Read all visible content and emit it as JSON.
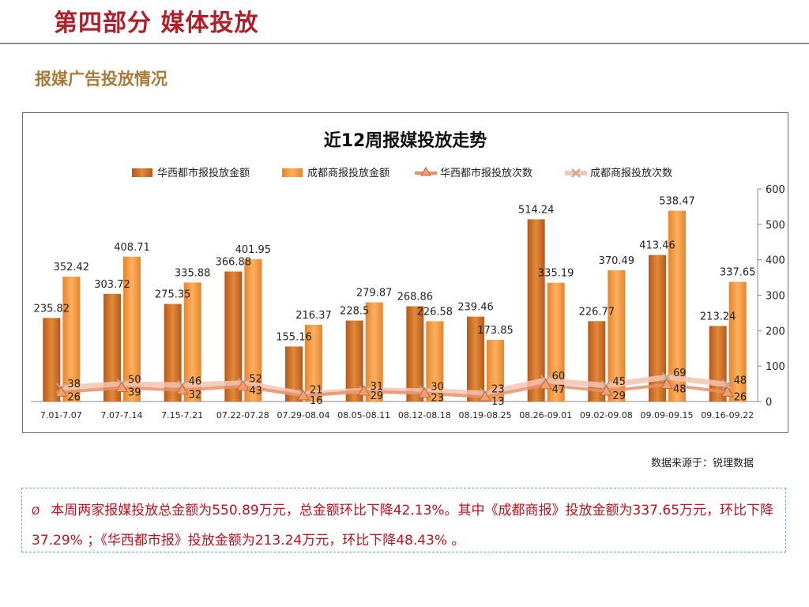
{
  "header": {
    "title": "第四部分 媒体投放",
    "section_title": "报媒广告投放情况"
  },
  "chart_data": {
    "type": "bar",
    "title": "近12周报媒投放走势",
    "categories": [
      "7.01-7.07",
      "7.07-7.14",
      "7.15-7.21",
      "07.22-07.28",
      "07.29-08.04",
      "08.05-08.11",
      "08.12-08.18",
      "08.19-08.25",
      "08.26-09.01",
      "09.02-09.08",
      "09.09-09.15",
      "09.16-09.22"
    ],
    "series": [
      {
        "name": "华西都市报投放金额",
        "kind": "bar",
        "values": [
          235.82,
          303.72,
          275.35,
          366.88,
          155.16,
          228.5,
          268.86,
          239.46,
          514.24,
          226.77,
          413.46,
          213.24
        ]
      },
      {
        "name": "成都商报投放金额",
        "kind": "bar",
        "values": [
          352.42,
          408.71,
          335.88,
          401.95,
          216.37,
          279.87,
          226.58,
          173.85,
          335.19,
          370.49,
          538.47,
          337.65
        ]
      },
      {
        "name": "华西都市报投放次数",
        "kind": "line",
        "values": [
          26,
          39,
          32,
          43,
          16,
          29,
          23,
          13,
          47,
          29,
          48,
          26
        ]
      },
      {
        "name": "成都商报投放次数",
        "kind": "line",
        "values": [
          38,
          50,
          46,
          52,
          21,
          31,
          30,
          23,
          60,
          45,
          69,
          48
        ]
      }
    ],
    "y_ticks": [
      "0",
      "100",
      "200",
      "300",
      "400",
      "500",
      "600"
    ],
    "ylim": [
      0,
      600
    ],
    "legend_position": "top",
    "grid": false,
    "colors": {
      "hx_bar": "#d9772a",
      "cd_bar": "#f5a04a",
      "hx_line": "#e8906a",
      "cd_line": "#f0c0b0"
    }
  },
  "footer": {
    "source": "数据来源于：锐理数据",
    "bullet": "Ø",
    "summary": "本周两家报媒投放总金额为550.89万元，总金额环比下降42.13%。其中《成都商报》投放金额为337.65万元，环比下降37.29% ；《华西都市报》投放金额为213.24万元，环比下降48.43% 。"
  }
}
